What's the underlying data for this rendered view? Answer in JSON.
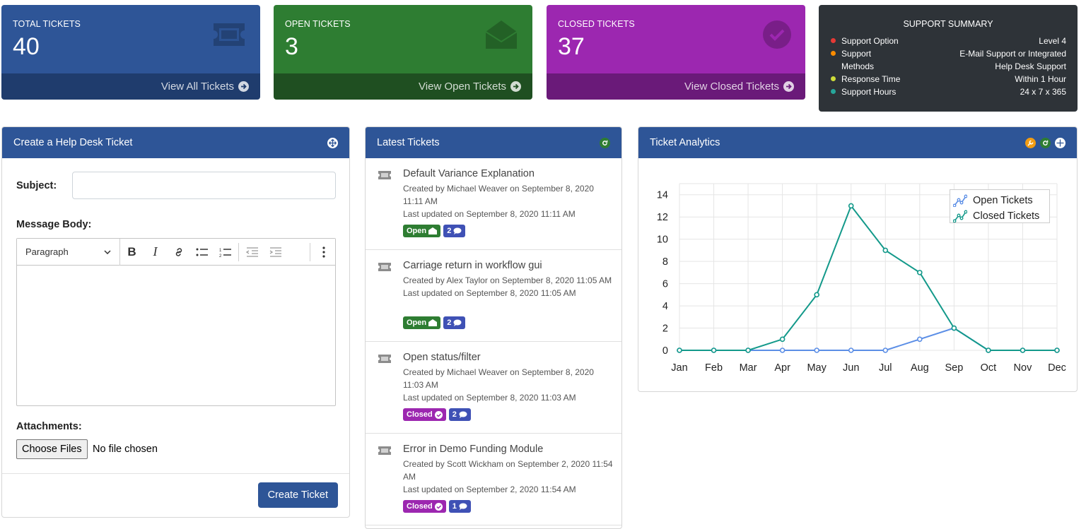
{
  "cards": {
    "total": {
      "label": "TOTAL TICKETS",
      "value": "40",
      "link": "View All Tickets",
      "color": "#2e5597",
      "footer_color": "#1f3c6d",
      "icon": "ticket-icon"
    },
    "open": {
      "label": "OPEN TICKETS",
      "value": "3",
      "link": "View Open Tickets",
      "color": "#2e7d32",
      "footer_color": "#1f4f21",
      "icon": "envelope-open-icon"
    },
    "closed": {
      "label": "CLOSED TICKETS",
      "value": "37",
      "link": "View Closed Tickets",
      "color": "#9c27b0",
      "footer_color": "#6a1a79",
      "icon": "check-circle-icon"
    }
  },
  "summary": {
    "title": "SUPPORT SUMMARY",
    "rows": [
      {
        "label": "Support Option",
        "value": "Level 4",
        "dot": "#e53935"
      },
      {
        "label": "Support Methods",
        "value": "E-Mail Support or Integrated Help Desk Support",
        "dot": "#fb8c00"
      },
      {
        "label": "Response Time",
        "value": "Within 1 Hour",
        "dot": "#cddc39"
      },
      {
        "label": "Support Hours",
        "value": "24 x 7 x 365",
        "dot": "#26a69a"
      }
    ]
  },
  "create_form": {
    "title": "Create a Help Desk Ticket",
    "subject_label": "Subject:",
    "subject_value": "",
    "body_label": "Message Body:",
    "format_select": "Paragraph",
    "attachments_label": "Attachments:",
    "choose_files": "Choose Files",
    "no_file": "No file chosen",
    "submit": "Create Ticket"
  },
  "latest": {
    "title": "Latest Tickets",
    "tickets": [
      {
        "title": "Default Variance Explanation",
        "created": "Created by Michael Weaver on September 8, 2020 11:11 AM",
        "updated": "Last updated on September 8, 2020 11:11 AM",
        "status": "Open",
        "comments": "2"
      },
      {
        "title": "Carriage return in workflow gui",
        "created": "Created by Alex Taylor on September 8, 2020 11:05 AM",
        "updated": "Last updated on September 8, 2020 11:05 AM",
        "status": "Open",
        "comments": "2"
      },
      {
        "title": "Open status/filter",
        "created": "Created by Michael Weaver on September 8, 2020 11:03 AM",
        "updated": "Last updated on September 8, 2020 11:03 AM",
        "status": "Closed",
        "comments": "2"
      },
      {
        "title": "Error in Demo Funding Module",
        "created": "Created by Scott Wickham on September 2, 2020 11:54 AM",
        "updated": "Last updated on September 2, 2020 11:54 AM",
        "status": "Closed",
        "comments": "1"
      }
    ],
    "status_colors": {
      "Open": "#2e7d32",
      "Closed": "#9c27b0"
    },
    "comment_color": "#3f51b5"
  },
  "analytics": {
    "title": "Ticket Analytics",
    "chart_data": {
      "type": "line",
      "categories": [
        "Jan",
        "Feb",
        "Mar",
        "Apr",
        "May",
        "Jun",
        "Jul",
        "Aug",
        "Sep",
        "Oct",
        "Nov",
        "Dec"
      ],
      "series": [
        {
          "name": "Open Tickets",
          "values": [
            0,
            0,
            0,
            0,
            0,
            0,
            0,
            1,
            2,
            0,
            0,
            0
          ],
          "color": "#5b8ee6"
        },
        {
          "name": "Closed Tickets",
          "values": [
            0,
            0,
            0,
            1,
            5,
            13,
            9,
            7,
            2,
            0,
            0,
            0
          ],
          "color": "#13998a"
        }
      ],
      "ylim": [
        0,
        15
      ],
      "yticks": [
        0,
        2,
        4,
        6,
        8,
        10,
        12,
        14
      ],
      "grid": true,
      "legend": "top-right"
    }
  }
}
